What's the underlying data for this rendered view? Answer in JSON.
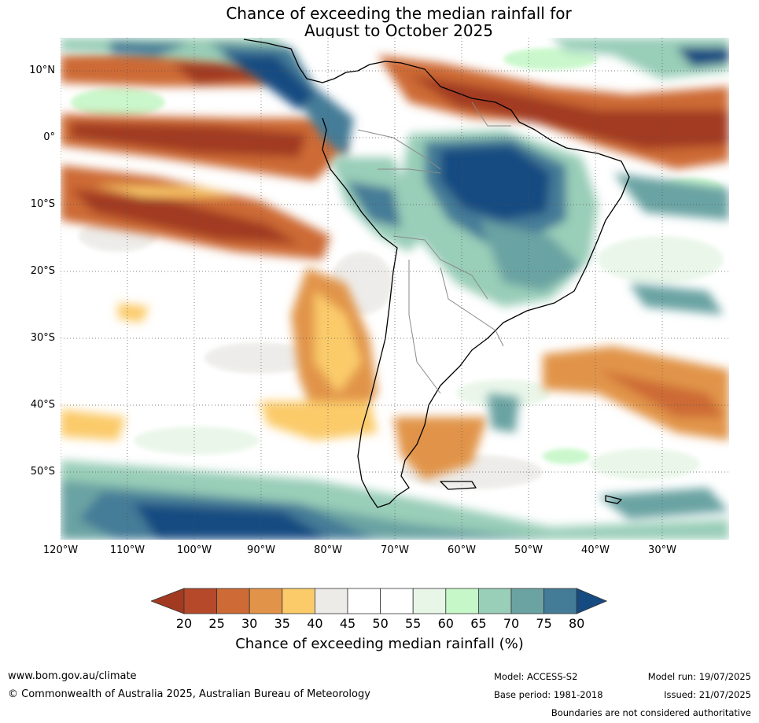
{
  "title_line1": "Chance of exceeding the median rainfall for",
  "title_line2": "August to October 2025",
  "map": {
    "lat_labels": [
      "10°N",
      "0°",
      "10°S",
      "20°S",
      "30°S",
      "40°S",
      "50°S"
    ],
    "lon_labels": [
      "120°W",
      "110°W",
      "100°W",
      "90°W",
      "80°W",
      "70°W",
      "60°W",
      "50°W",
      "40°W",
      "30°W"
    ],
    "lat_values": [
      10,
      0,
      -10,
      -20,
      -30,
      -40,
      -50
    ],
    "lon_values": [
      -120,
      -110,
      -100,
      -90,
      -80,
      -70,
      -60,
      -50,
      -40,
      -30
    ]
  },
  "colorbar": {
    "label": "Chance of exceeding median rainfall (%)",
    "ticks": [
      "20",
      "25",
      "30",
      "35",
      "40",
      "45",
      "50",
      "55",
      "60",
      "65",
      "70",
      "75",
      "80"
    ],
    "colors": [
      "#a23a22",
      "#b5492a",
      "#cd6a35",
      "#e19449",
      "#fbcb6a",
      "#ecebe8",
      "#ffffff",
      "#ffffff",
      "#e8f6e8",
      "#c6f7c8",
      "#99ceb8",
      "#6ba3a3",
      "#447b97",
      "#154b81"
    ]
  },
  "footer": {
    "website": "www.bom.gov.au/climate",
    "copyright": "© Commonwealth of Australia 2025, Australian Bureau of Meteorology",
    "model": "Model: ACCESS-S2",
    "base_period": "Base period: 1981-2018",
    "model_run": "Model run: 19/07/2025",
    "issued": "Issued: 21/07/2025",
    "disclaimer": "Boundaries are not considered authoritative"
  }
}
